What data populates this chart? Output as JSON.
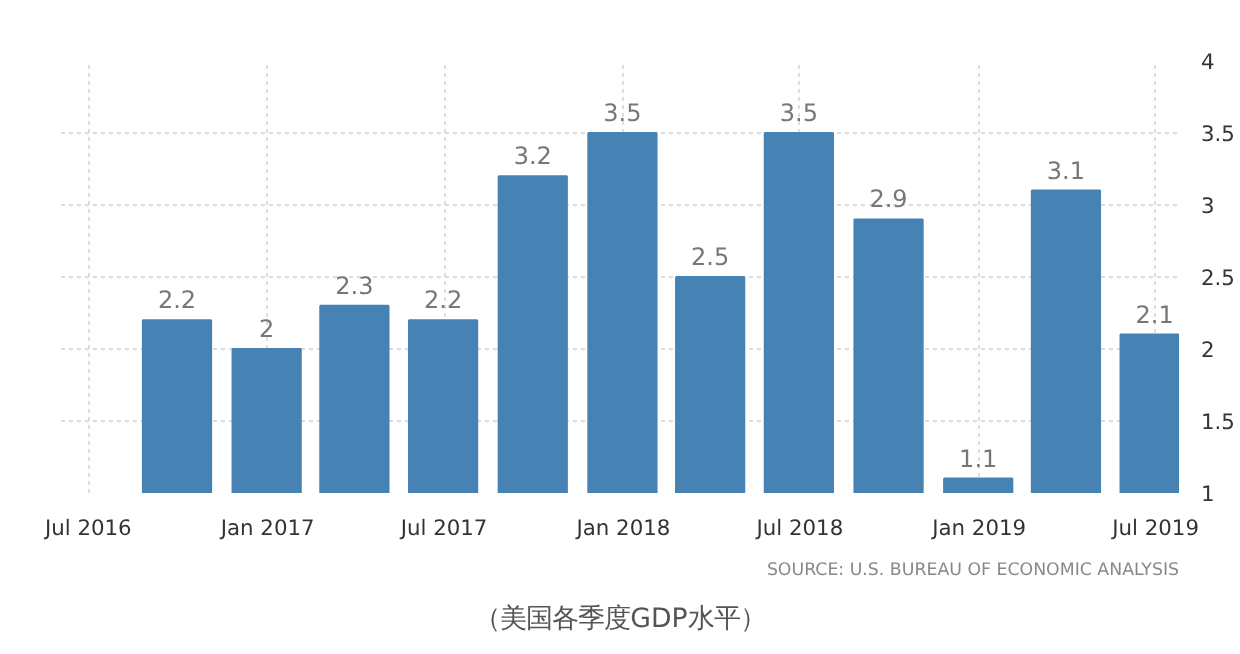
{
  "chart_data": {
    "type": "bar",
    "x": [
      "2016-09-30",
      "2016-12-31",
      "2017-03-31",
      "2017-06-30",
      "2017-09-30",
      "2017-12-31",
      "2018-03-31",
      "2018-06-30",
      "2018-09-30",
      "2018-12-31",
      "2019-03-31",
      "2019-06-30"
    ],
    "values": [
      2.2,
      2,
      2.3,
      2.2,
      3.2,
      3.5,
      2.5,
      3.5,
      2.9,
      1.1,
      3.1,
      2.1
    ],
    "color": "#4682b4",
    "data_labels": true,
    "xlim": [
      "2016-06-03",
      "2019-07-25"
    ],
    "xticks": [
      {
        "value": "2016-07-01",
        "label": "Jul 2016"
      },
      {
        "value": "2017-01-01",
        "label": "Jan 2017"
      },
      {
        "value": "2017-07-01",
        "label": "Jul 2017"
      },
      {
        "value": "2018-01-01",
        "label": "Jan 2018"
      },
      {
        "value": "2018-07-01",
        "label": "Jul 2018"
      },
      {
        "value": "2019-01-01",
        "label": "Jan 2019"
      },
      {
        "value": "2019-07-01",
        "label": "Jul 2019"
      }
    ],
    "ylim": [
      1,
      4
    ],
    "yticks": [
      1,
      1.5,
      2,
      2.5,
      3,
      3.5,
      4
    ],
    "grid": true,
    "annotations": [
      "SOURCE: U.S. BUREAU OF ECONOMIC ANALYSIS",
      "（美国各季度GDP水平）"
    ]
  }
}
